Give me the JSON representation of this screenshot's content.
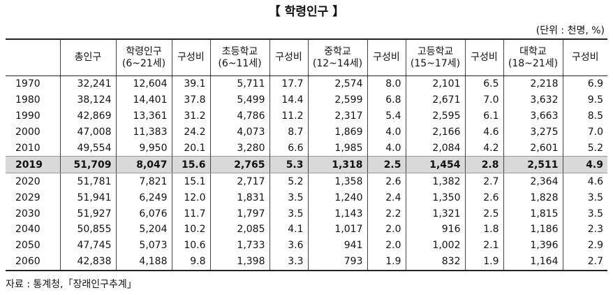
{
  "title": "【 학령인구 】",
  "unit": "(단위 : 천명, %)",
  "table": {
    "header": [
      "",
      "총인구",
      "학령인구\n(6~21세)",
      "구성비",
      "초등학교\n(6~11세)",
      "구성비",
      "중학교\n(12~14세)",
      "구성비",
      "고등학교\n(15~17세)",
      "구성비",
      "대학교\n(18~21세)",
      "구성비"
    ],
    "rows": [
      [
        "1970",
        "32,241",
        "12,604",
        "39.1",
        "5,711",
        "17.7",
        "2,574",
        "8.0",
        "2,101",
        "6.5",
        "2,218",
        "6.9"
      ],
      [
        "1980",
        "38,124",
        "14,401",
        "37.8",
        "5,499",
        "14.4",
        "2,599",
        "6.8",
        "2,671",
        "7.0",
        "3,632",
        "9.5"
      ],
      [
        "1990",
        "42,869",
        "13,361",
        "31.2",
        "4,786",
        "11.2",
        "2,317",
        "5.4",
        "2,595",
        "6.1",
        "3,663",
        "8.5"
      ],
      [
        "2000",
        "47,008",
        "11,383",
        "24.2",
        "4,073",
        "8.7",
        "1,869",
        "4.0",
        "2,166",
        "4.6",
        "3,275",
        "7.0"
      ],
      [
        "2010",
        "49,554",
        "9,950",
        "20.1",
        "3,280",
        "6.6",
        "1,985",
        "4.0",
        "2,084",
        "4.2",
        "2,601",
        "5.2"
      ],
      [
        "2019",
        "51,709",
        "8,047",
        "15.6",
        "2,765",
        "5.3",
        "1,318",
        "2.5",
        "1,454",
        "2.8",
        "2,511",
        "4.9"
      ],
      [
        "2020",
        "51,781",
        "7,821",
        "15.1",
        "2,717",
        "5.2",
        "1,358",
        "2.6",
        "1,382",
        "2.7",
        "2,364",
        "4.6"
      ],
      [
        "2029",
        "51,941",
        "6,249",
        "12.0",
        "1,831",
        "3.5",
        "1,240",
        "2.4",
        "1,350",
        "2.6",
        "1,828",
        "3.5"
      ],
      [
        "2030",
        "51,927",
        "6,076",
        "11.7",
        "1,797",
        "3.5",
        "1,143",
        "2.2",
        "1,321",
        "2.5",
        "1,815",
        "3.5"
      ],
      [
        "2040",
        "50,855",
        "5,204",
        "10.2",
        "2,085",
        "4.1",
        "1,017",
        "2.0",
        "916",
        "1.8",
        "1,186",
        "2.3"
      ],
      [
        "2050",
        "47,745",
        "5,073",
        "10.6",
        "1,733",
        "3.6",
        "941",
        "2.0",
        "1,002",
        "2.1",
        "1,396",
        "2.9"
      ],
      [
        "2060",
        "42,838",
        "4,188",
        "9.8",
        "1,398",
        "3.3",
        "793",
        "1.9",
        "832",
        "1.9",
        "1,164",
        "2.7"
      ]
    ],
    "highlight_row": 5
  },
  "source": "자료 : 통계청,「장래인구추계」"
}
